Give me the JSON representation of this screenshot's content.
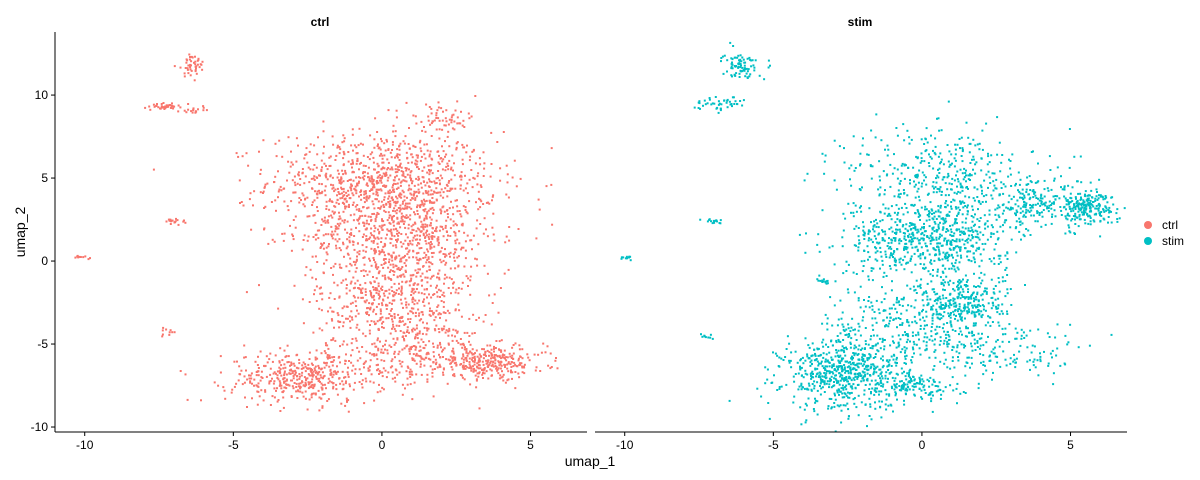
{
  "chart_data": {
    "type": "scatter",
    "xlabel": "umap_1",
    "ylabel": "umap_2",
    "xlim": [
      -11,
      6.9
    ],
    "ylim": [
      -10.3,
      13.8
    ],
    "x_ticks": [
      -10,
      -5,
      0,
      5
    ],
    "y_ticks": [
      -10,
      -5,
      0,
      5,
      10
    ],
    "x_tick_labels": [
      "-10",
      "-5",
      "0",
      "5"
    ],
    "y_tick_labels": [
      "-10",
      "-5",
      "0",
      "5",
      "10"
    ],
    "grid": false,
    "legend_position": "right",
    "legend": [
      {
        "label": "ctrl",
        "color": "#F8766D"
      },
      {
        "label": "stim",
        "color": "#00BFC4"
      }
    ],
    "facets": [
      {
        "title": "ctrl",
        "color": "#F8766D",
        "clusters": [
          {
            "cx": 0.0,
            "cy": 4.8,
            "sx": 1.9,
            "sy": 1.5,
            "n": 900
          },
          {
            "cx": 0.6,
            "cy": 1.5,
            "sx": 1.6,
            "sy": 1.6,
            "n": 700
          },
          {
            "cx": 0.4,
            "cy": -2.5,
            "sx": 1.3,
            "sy": 1.5,
            "n": 500
          },
          {
            "cx": -2.6,
            "cy": -7.0,
            "sx": 1.3,
            "sy": 0.8,
            "n": 450
          },
          {
            "cx": 3.7,
            "cy": -6.1,
            "sx": 0.9,
            "sy": 0.5,
            "n": 280
          },
          {
            "cx": 1.3,
            "cy": -5.8,
            "sx": 1.2,
            "sy": 0.9,
            "n": 250
          },
          {
            "cx": 2.0,
            "cy": 8.6,
            "sx": 0.6,
            "sy": 0.4,
            "n": 60
          },
          {
            "cx": -6.4,
            "cy": 11.8,
            "sx": 0.25,
            "sy": 0.35,
            "n": 45
          },
          {
            "cx": -7.3,
            "cy": 9.3,
            "sx": 0.2,
            "sy": 0.08,
            "n": 40
          },
          {
            "cx": -6.3,
            "cy": 9.1,
            "sx": 0.25,
            "sy": 0.12,
            "n": 18
          },
          {
            "cx": -7.0,
            "cy": 2.4,
            "sx": 0.2,
            "sy": 0.08,
            "n": 18
          },
          {
            "cx": -10.1,
            "cy": 0.2,
            "sx": 0.12,
            "sy": 0.06,
            "n": 10
          },
          {
            "cx": -7.2,
            "cy": -4.3,
            "sx": 0.12,
            "sy": 0.15,
            "n": 10
          }
        ]
      },
      {
        "title": "stim",
        "color": "#00BFC4",
        "clusters": [
          {
            "cx": -2.5,
            "cy": -6.8,
            "sx": 1.1,
            "sy": 1.1,
            "n": 700
          },
          {
            "cx": 0.2,
            "cy": 1.3,
            "sx": 1.4,
            "sy": 1.1,
            "n": 650
          },
          {
            "cx": 1.4,
            "cy": -2.5,
            "sx": 0.7,
            "sy": 0.9,
            "n": 300
          },
          {
            "cx": 0.6,
            "cy": 5.2,
            "sx": 1.6,
            "sy": 1.5,
            "n": 400
          },
          {
            "cx": 5.5,
            "cy": 3.2,
            "sx": 0.5,
            "sy": 0.5,
            "n": 220
          },
          {
            "cx": 3.8,
            "cy": 3.5,
            "sx": 1.0,
            "sy": 0.8,
            "n": 200
          },
          {
            "cx": -0.7,
            "cy": -3.8,
            "sx": 1.2,
            "sy": 1.4,
            "n": 260
          },
          {
            "cx": 2.5,
            "cy": -5.4,
            "sx": 1.5,
            "sy": 0.9,
            "n": 180
          },
          {
            "cx": 0.0,
            "cy": -7.6,
            "sx": 0.6,
            "sy": 0.4,
            "n": 90
          },
          {
            "cx": -6.1,
            "cy": 11.8,
            "sx": 0.3,
            "sy": 0.4,
            "n": 85
          },
          {
            "cx": -6.8,
            "cy": 9.5,
            "sx": 0.4,
            "sy": 0.2,
            "n": 45
          },
          {
            "cx": -3.3,
            "cy": -1.2,
            "sx": 0.15,
            "sy": 0.1,
            "n": 14
          },
          {
            "cx": -7.0,
            "cy": 2.4,
            "sx": 0.2,
            "sy": 0.08,
            "n": 15
          },
          {
            "cx": -10.0,
            "cy": 0.2,
            "sx": 0.12,
            "sy": 0.06,
            "n": 10
          },
          {
            "cx": -7.2,
            "cy": -4.5,
            "sx": 0.12,
            "sy": 0.12,
            "n": 9
          }
        ]
      }
    ]
  }
}
